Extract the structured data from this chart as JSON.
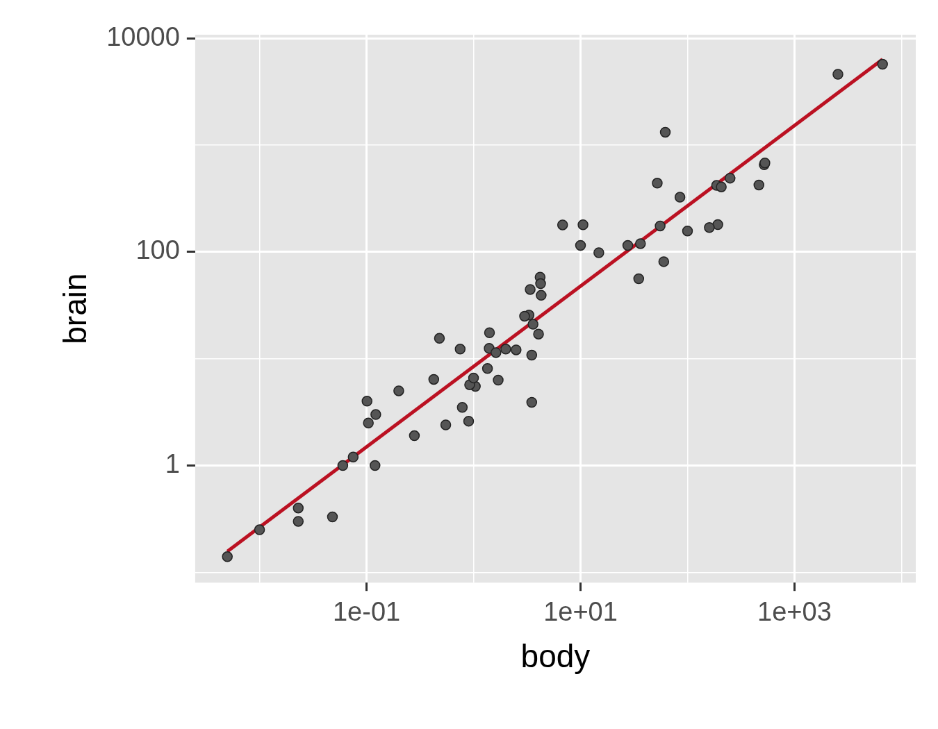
{
  "chart_data": {
    "type": "scatter",
    "xlabel": "body",
    "ylabel": "brain",
    "log": "xy",
    "grid": true,
    "legend": false,
    "xlim": [
      0.0025,
      13600
    ],
    "ylim": [
      0.08,
      10800
    ],
    "xticks": [
      {
        "value": 0.01,
        "label": null
      },
      {
        "value": 0.1,
        "label": "1e-01"
      },
      {
        "value": 1,
        "label": null
      },
      {
        "value": 10,
        "label": "1e+01"
      },
      {
        "value": 100,
        "label": null
      },
      {
        "value": 1000,
        "label": "1e+03"
      },
      {
        "value": 10000,
        "label": null
      }
    ],
    "yticks": [
      {
        "value": 0.1,
        "label": null
      },
      1,
      {
        "value": 10,
        "label": null
      },
      100,
      {
        "value": 1000,
        "label": null
      },
      10000
    ],
    "series": [
      {
        "type": "scatter",
        "marker": "circle",
        "color": "#555555",
        "x": [
          3.385,
          0.48,
          1.35,
          465,
          36.33,
          27.66,
          14.83,
          1.04,
          4.19,
          0.425,
          0.101,
          0.92,
          1,
          0.005,
          0.06,
          3.5,
          2,
          1.7,
          2547,
          0.023,
          187.1,
          521,
          0.785,
          10,
          3.3,
          0.2,
          1.41,
          529,
          207,
          85,
          0.75,
          62,
          6654,
          3.5,
          6.8,
          35,
          4.05,
          0.12,
          0.023,
          0.01,
          1.4,
          250,
          2.5,
          55.5,
          100,
          52.16,
          10.55,
          0.55,
          60,
          3.6,
          4.288,
          0.28,
          0.075,
          0.122,
          0.048,
          192,
          3,
          160,
          0.9,
          1.62,
          0.104,
          4.235
        ],
        "values": [
          44.5,
          15.5,
          8.1,
          423,
          119.5,
          115,
          98.2,
          5.5,
          58,
          6.4,
          4,
          5.7,
          6.6,
          0.14,
          1,
          10.8,
          12.3,
          6.3,
          4603,
          0.3,
          419,
          655,
          3.5,
          115,
          25.6,
          5,
          17.5,
          680,
          406,
          325,
          12.3,
          1320,
          5712,
          3.9,
          179,
          56,
          17,
          1,
          0.4,
          0.25,
          12.5,
          490,
          12.1,
          175,
          157,
          440,
          179.5,
          2.4,
          81,
          21,
          39.2,
          1.9,
          1.2,
          3,
          0.33,
          180,
          25,
          169,
          2.6,
          11.4,
          2.5,
          50.4
        ]
      },
      {
        "type": "line",
        "marker": "none",
        "color": "#bb1122",
        "x": [
          0.005,
          6654
        ],
        "values": [
          0.157,
          6340
        ]
      }
    ]
  }
}
